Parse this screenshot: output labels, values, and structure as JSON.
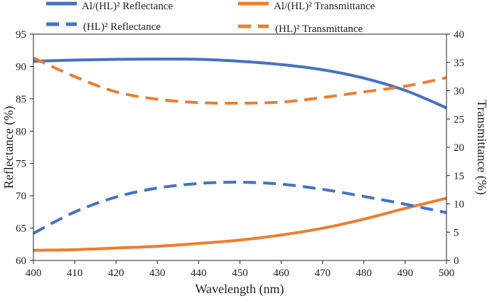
{
  "chart_data": {
    "type": "line",
    "xlabel": "Wavelength (nm)",
    "ylabel": "Reflectance (%)",
    "y2label": "Transmittance (%)",
    "xlim": [
      400,
      500
    ],
    "ylim": [
      60,
      95
    ],
    "y2lim": [
      0,
      40
    ],
    "xticks": [
      400,
      410,
      420,
      430,
      440,
      450,
      460,
      470,
      480,
      490,
      500
    ],
    "yticks": [
      60,
      65,
      70,
      75,
      80,
      85,
      90,
      95
    ],
    "y2ticks": [
      0,
      5,
      10,
      15,
      20,
      25,
      30,
      35,
      40
    ],
    "grid": false,
    "legend": "top",
    "x": [
      400,
      410,
      420,
      430,
      440,
      450,
      460,
      470,
      480,
      490,
      500
    ],
    "series": [
      {
        "name": "Al/(HL)² Reflectance",
        "axis": "left",
        "color": "#4472C4",
        "dash": false,
        "values": [
          90.8,
          91.0,
          91.1,
          91.15,
          91.1,
          90.8,
          90.3,
          89.5,
          88.2,
          86.3,
          83.6
        ]
      },
      {
        "name": "Al/(HL)² Transmittance",
        "axis": "right",
        "color": "#ED7D31",
        "dash": false,
        "values": [
          1.8,
          1.9,
          2.2,
          2.5,
          3.0,
          3.6,
          4.5,
          5.7,
          7.3,
          9.2,
          11.0
        ]
      },
      {
        "name": "(HL)² Reflectance",
        "axis": "left",
        "color": "#4472C4",
        "dash": true,
        "values": [
          64.2,
          67.5,
          69.8,
          71.2,
          71.9,
          72.1,
          71.8,
          71.0,
          69.9,
          68.7,
          67.4
        ]
      },
      {
        "name": "(HL)² Transmittance",
        "axis": "right",
        "color": "#ED7D31",
        "dash": true,
        "values": [
          35.8,
          32.5,
          29.8,
          28.5,
          27.9,
          27.8,
          28.0,
          28.8,
          29.8,
          30.8,
          32.3
        ]
      }
    ]
  }
}
